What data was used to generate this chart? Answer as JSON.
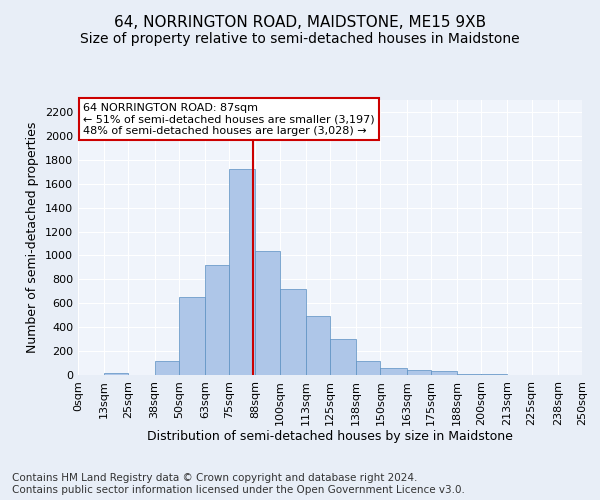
{
  "title1": "64, NORRINGTON ROAD, MAIDSTONE, ME15 9XB",
  "title2": "Size of property relative to semi-detached houses in Maidstone",
  "xlabel": "Distribution of semi-detached houses by size in Maidstone",
  "ylabel": "Number of semi-detached properties",
  "footnote": "Contains HM Land Registry data © Crown copyright and database right 2024.\nContains public sector information licensed under the Open Government Licence v3.0.",
  "bin_labels": [
    "0sqm",
    "13sqm",
    "25sqm",
    "38sqm",
    "50sqm",
    "63sqm",
    "75sqm",
    "88sqm",
    "100sqm",
    "113sqm",
    "125sqm",
    "138sqm",
    "150sqm",
    "163sqm",
    "175sqm",
    "188sqm",
    "200sqm",
    "213sqm",
    "225sqm",
    "238sqm",
    "250sqm"
  ],
  "bin_edges": [
    0,
    13,
    25,
    38,
    50,
    63,
    75,
    88,
    100,
    113,
    125,
    138,
    150,
    163,
    175,
    188,
    200,
    213,
    225,
    238,
    250
  ],
  "bar_heights": [
    0,
    20,
    0,
    120,
    650,
    920,
    1720,
    1040,
    720,
    490,
    300,
    120,
    60,
    40,
    30,
    10,
    5,
    2,
    1,
    0
  ],
  "bar_color": "#aec6e8",
  "bar_edgecolor": "#5a8fc2",
  "property_size": 87,
  "annotation_title": "64 NORRINGTON ROAD: 87sqm",
  "annotation_line1": "← 51% of semi-detached houses are smaller (3,197)",
  "annotation_line2": "48% of semi-detached houses are larger (3,028) →",
  "vline_color": "#cc0000",
  "annotation_box_color": "#ffffff",
  "annotation_box_edgecolor": "#cc0000",
  "ylim": [
    0,
    2300
  ],
  "yticks": [
    0,
    200,
    400,
    600,
    800,
    1000,
    1200,
    1400,
    1600,
    1800,
    2000,
    2200
  ],
  "bg_color": "#e8eef7",
  "plot_bg_color": "#f0f4fb",
  "title1_fontsize": 11,
  "title2_fontsize": 10,
  "axis_label_fontsize": 9,
  "tick_fontsize": 8,
  "annotation_fontsize": 8,
  "footnote_fontsize": 7.5
}
